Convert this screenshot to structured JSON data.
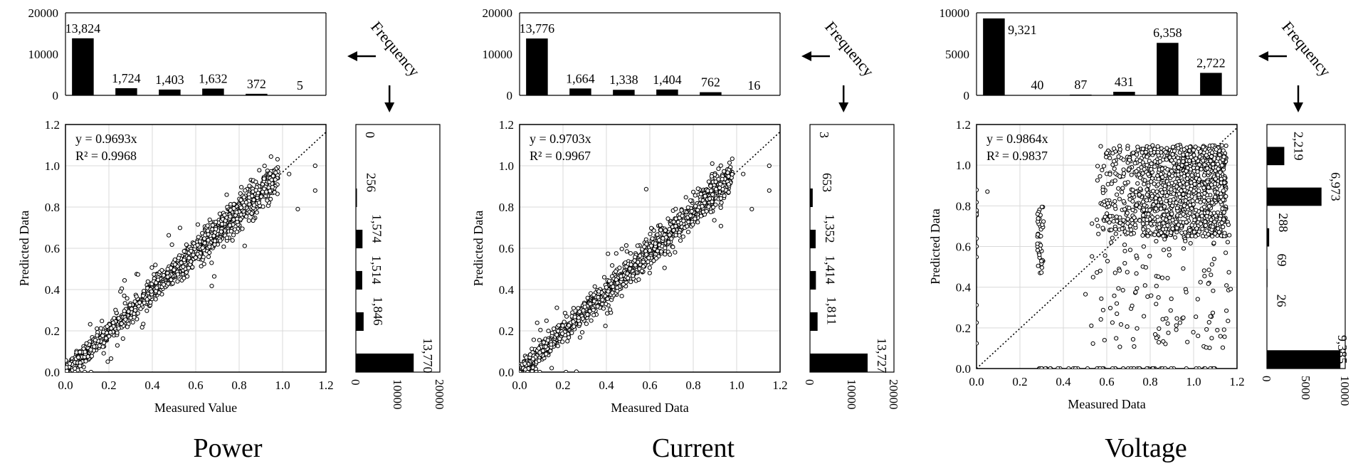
{
  "figure": {
    "description_free": true,
    "frequency_label": "Frequency"
  },
  "chart_data": [
    {
      "type": "scatter",
      "title": "Power",
      "xlabel": "Measured Value",
      "ylabel": "Predicted Data",
      "xlim": [
        0,
        1.2
      ],
      "ylim": [
        0,
        1.2
      ],
      "xticks": [
        "0.0",
        "0.2",
        "0.4",
        "0.6",
        "0.8",
        "1.0",
        "1.2"
      ],
      "yticks": [
        "0.0",
        "0.2",
        "0.4",
        "0.6",
        "0.8",
        "1.0",
        "1.2"
      ],
      "equation": "y = 0.9693x",
      "r_squared": "R² = 0.9968",
      "slope": 0.9693,
      "pattern": "tight",
      "top_hist": {
        "ylim": [
          0,
          20000
        ],
        "yticks": [
          "0",
          "10000",
          "20000"
        ],
        "values": [
          13824,
          1724,
          1403,
          1632,
          372,
          5
        ],
        "labels": [
          "13,824",
          "1,724",
          "1,403",
          "1,632",
          "372",
          "5"
        ]
      },
      "side_hist": {
        "xlim": [
          0,
          20000
        ],
        "xticks": [
          "0",
          "10000",
          "20000"
        ],
        "values": [
          0,
          256,
          1574,
          1514,
          1846,
          13770
        ],
        "labels": [
          "0",
          "256",
          "1,574",
          "1,514",
          "1,846",
          "13,770"
        ]
      }
    },
    {
      "type": "scatter",
      "title": "Current",
      "xlabel": "Measured Data",
      "ylabel": "Predicted Data",
      "xlim": [
        0,
        1.2
      ],
      "ylim": [
        0,
        1.2
      ],
      "xticks": [
        "0.0",
        "0.2",
        "0.4",
        "0.6",
        "0.8",
        "1.0",
        "1.2"
      ],
      "yticks": [
        "0.0",
        "0.2",
        "0.4",
        "0.6",
        "0.8",
        "1.0",
        "1.2"
      ],
      "equation": "y = 0.9703x",
      "r_squared": "R² = 0.9967",
      "slope": 0.9703,
      "pattern": "tight",
      "top_hist": {
        "ylim": [
          0,
          20000
        ],
        "yticks": [
          "0",
          "10000",
          "20000"
        ],
        "values": [
          13776,
          1664,
          1338,
          1404,
          762,
          16
        ],
        "labels": [
          "13,776",
          "1,664",
          "1,338",
          "1,404",
          "762",
          "16"
        ]
      },
      "side_hist": {
        "xlim": [
          0,
          20000
        ],
        "xticks": [
          "0",
          "10000",
          "20000"
        ],
        "values": [
          3,
          653,
          1352,
          1414,
          1811,
          13727
        ],
        "labels": [
          "3",
          "653",
          "1,352",
          "1,414",
          "1,811",
          "13,727"
        ]
      }
    },
    {
      "type": "scatter",
      "title": "Voltage",
      "xlabel": "Measured Data",
      "ylabel": "Predicted Data",
      "xlim": [
        0,
        1.2
      ],
      "ylim": [
        0,
        1.2
      ],
      "xticks": [
        "0.0",
        "0.2",
        "0.4",
        "0.6",
        "0.8",
        "1.0",
        "1.2"
      ],
      "yticks": [
        "0.0",
        "0.2",
        "0.4",
        "0.6",
        "0.8",
        "1.0",
        "1.2"
      ],
      "equation": "y = 0.9864x",
      "r_squared": "R² = 0.9837",
      "slope": 0.9864,
      "pattern": "scattered",
      "top_hist": {
        "ylim": [
          0,
          10000
        ],
        "yticks": [
          "0",
          "5000",
          "10000"
        ],
        "values": [
          9321,
          40,
          87,
          431,
          6358,
          2722
        ],
        "labels": [
          "9,321",
          "40",
          "87",
          "431",
          "6,358",
          "2,722"
        ]
      },
      "side_hist": {
        "xlim": [
          0,
          10000
        ],
        "xticks": [
          "0",
          "5000",
          "10000"
        ],
        "values": [
          2219,
          6973,
          288,
          69,
          26,
          9385
        ],
        "labels": [
          "2,219",
          "6,973",
          "288",
          "69",
          "26",
          "9,385"
        ]
      }
    }
  ]
}
